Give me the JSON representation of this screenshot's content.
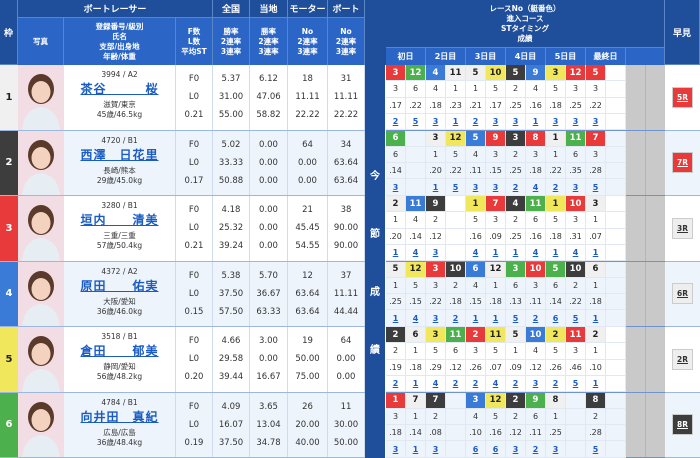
{
  "header": {
    "frame": "枠",
    "racer": "ボートレーサー",
    "photo": "写真",
    "info": "登録番号/級別\n氏名\n支部/出身地\n年齢/体重",
    "fl": "F数\nL数\n平均ST",
    "national": "全国",
    "national_sub": "勝率\n2連率\n3連率",
    "local": "当地",
    "local_sub": "勝率\n2連率\n3連率",
    "motor": "モーター",
    "motor_sub": "No\n2連率\n3連率",
    "boat": "ボート",
    "boat_sub": "No\n2連率\n3連率",
    "series": "レースNo（艇番色）\n進入コース\nSTタイミング\n成績",
    "days": [
      "初日",
      "2日目",
      "3日目",
      "4日目",
      "5日目",
      "最終日",
      ""
    ],
    "hayami": "早見",
    "vertical": [
      "今",
      "節",
      "成",
      "績"
    ]
  },
  "frame_colors": {
    "1": "#f0f0f0",
    "2": "#3d3d3d",
    "3": "#e8393b",
    "4": "#3b7bd8",
    "5": "#f1e75c",
    "6": "#4cb14c"
  },
  "racers": [
    {
      "frame": "1",
      "reg": "3994 / A2",
      "name": "茶谷　　　桜",
      "origin": "滋賀/東京",
      "age_weight": "45歳/46.5kg",
      "fl": [
        "F0",
        "L0",
        "0.21"
      ],
      "national": [
        "5.37",
        "31.00",
        "55.00"
      ],
      "local": [
        "6.12",
        "47.06",
        "58.82"
      ],
      "motor": [
        "18",
        "11.11",
        "22.22"
      ],
      "boat": [
        "31",
        "11.11",
        "22.22"
      ],
      "race": [
        "3",
        "12",
        "4",
        "11",
        "5",
        "10",
        "5",
        "9",
        "3",
        "12",
        "5",
        ""
      ],
      "course": [
        "3",
        "6",
        "4",
        "1",
        "1",
        "5",
        "2",
        "4",
        "5",
        "3",
        "3",
        ""
      ],
      "st": [
        ".17",
        ".22",
        ".18",
        ".23",
        ".21",
        ".17",
        ".25",
        ".16",
        ".18",
        ".25",
        ".22",
        ""
      ],
      "result": [
        "2",
        "5",
        "3",
        "1",
        "2",
        "3",
        "3",
        "1",
        "3",
        "3",
        "3",
        ""
      ],
      "hayami": "5R",
      "hayami_color": "#e8393b"
    },
    {
      "frame": "2",
      "reg": "4720 / B1",
      "name": "西澤　日花里",
      "origin": "長崎/熊本",
      "age_weight": "29歳/45.0kg",
      "fl": [
        "F0",
        "L0",
        "0.17"
      ],
      "national": [
        "5.02",
        "33.33",
        "50.88"
      ],
      "local": [
        "0.00",
        "0.00",
        "0.00"
      ],
      "motor": [
        "64",
        "0.00",
        "0.00"
      ],
      "boat": [
        "34",
        "63.64",
        "63.64"
      ],
      "race": [
        "6",
        "",
        "3",
        "12",
        "5",
        "9",
        "3",
        "8",
        "1",
        "11",
        "7",
        ""
      ],
      "course": [
        "6",
        "",
        "1",
        "5",
        "4",
        "3",
        "2",
        "3",
        "1",
        "6",
        "3",
        ""
      ],
      "st": [
        ".14",
        "",
        ".20",
        ".22",
        ".11",
        ".15",
        ".25",
        ".18",
        ".22",
        ".35",
        ".28",
        ""
      ],
      "result": [
        "3",
        "",
        "1",
        "5",
        "3",
        "3",
        "2",
        "4",
        "2",
        "3",
        "5",
        ""
      ],
      "hayami": "7R",
      "hayami_color": "#e8393b"
    },
    {
      "frame": "3",
      "reg": "3280 / B1",
      "name": "垣内　　清美",
      "origin": "三重/三重",
      "age_weight": "57歳/50.4kg",
      "fl": [
        "F0",
        "L0",
        "0.21"
      ],
      "national": [
        "4.18",
        "25.32",
        "39.24"
      ],
      "local": [
        "0.00",
        "0.00",
        "0.00"
      ],
      "motor": [
        "21",
        "45.45",
        "54.55"
      ],
      "boat": [
        "38",
        "90.00",
        "90.00"
      ],
      "race": [
        "2",
        "11",
        "9",
        "",
        "1",
        "7",
        "4",
        "11",
        "1",
        "10",
        "3",
        ""
      ],
      "course": [
        "1",
        "4",
        "2",
        "",
        "5",
        "3",
        "2",
        "6",
        "5",
        "3",
        "1",
        ""
      ],
      "st": [
        ".20",
        ".14",
        ".12",
        "",
        ".16",
        ".09",
        ".25",
        ".16",
        ".18",
        ".31",
        ".07",
        ""
      ],
      "result": [
        "1",
        "4",
        "3",
        "",
        "4",
        "1",
        "1",
        "4",
        "1",
        "4",
        "1",
        ""
      ],
      "hayami": "3R",
      "hayami_color": "#eeeeee"
    },
    {
      "frame": "4",
      "reg": "4372 / A2",
      "name": "原田　　佑実",
      "origin": "大阪/愛知",
      "age_weight": "36歳/46.0kg",
      "fl": [
        "F0",
        "L0",
        "0.15"
      ],
      "national": [
        "5.38",
        "37.50",
        "57.50"
      ],
      "local": [
        "5.70",
        "36.67",
        "63.33"
      ],
      "motor": [
        "12",
        "63.64",
        "63.64"
      ],
      "boat": [
        "37",
        "11.11",
        "44.44"
      ],
      "race": [
        "5",
        "12",
        "3",
        "10",
        "6",
        "12",
        "3",
        "10",
        "5",
        "10",
        "6",
        ""
      ],
      "course": [
        "1",
        "5",
        "3",
        "2",
        "4",
        "1",
        "6",
        "3",
        "6",
        "2",
        "1",
        ""
      ],
      "st": [
        ".25",
        ".15",
        ".22",
        ".18",
        ".15",
        ".18",
        ".13",
        ".11",
        ".14",
        ".22",
        ".18",
        ""
      ],
      "result": [
        "1",
        "4",
        "3",
        "2",
        "1",
        "1",
        "5",
        "2",
        "6",
        "5",
        "1",
        ""
      ],
      "hayami": "6R",
      "hayami_color": "#eeeeee"
    },
    {
      "frame": "5",
      "reg": "3518 / B1",
      "name": "倉田　　郁美",
      "origin": "静岡/愛知",
      "age_weight": "56歳/48.2kg",
      "fl": [
        "F0",
        "L0",
        "0.20"
      ],
      "national": [
        "4.66",
        "29.58",
        "39.44"
      ],
      "local": [
        "3.00",
        "0.00",
        "16.67"
      ],
      "motor": [
        "19",
        "50.00",
        "75.00"
      ],
      "boat": [
        "64",
        "0.00",
        "0.00"
      ],
      "race": [
        "2",
        "6",
        "3",
        "11",
        "2",
        "11",
        "5",
        "10",
        "2",
        "11",
        "2",
        ""
      ],
      "course": [
        "2",
        "1",
        "5",
        "6",
        "3",
        "5",
        "1",
        "4",
        "5",
        "3",
        "1",
        ""
      ],
      "st": [
        ".19",
        ".18",
        ".29",
        ".12",
        ".26",
        ".07",
        ".09",
        ".12",
        ".26",
        ".46",
        ".10",
        ""
      ],
      "result": [
        "2",
        "1",
        "4",
        "2",
        "2",
        "4",
        "2",
        "3",
        "2",
        "5",
        "1",
        ""
      ],
      "hayami": "2R",
      "hayami_color": "#eeeeee"
    },
    {
      "frame": "6",
      "reg": "4784 / B1",
      "name": "向井田　真紀",
      "origin": "広島/広島",
      "age_weight": "36歳/48.4kg",
      "fl": [
        "F0",
        "L0",
        "0.19"
      ],
      "national": [
        "4.09",
        "16.07",
        "37.50"
      ],
      "local": [
        "3.65",
        "13.04",
        "34.78"
      ],
      "motor": [
        "26",
        "20.00",
        "40.00"
      ],
      "boat": [
        "11",
        "30.00",
        "50.00"
      ],
      "race": [
        "1",
        "7",
        "7",
        "",
        "3",
        "12",
        "2",
        "9",
        "8",
        "",
        "8",
        ""
      ],
      "course": [
        "3",
        "1",
        "2",
        "",
        "4",
        "5",
        "2",
        "6",
        "1",
        "",
        "2",
        ""
      ],
      "st": [
        ".18",
        ".14",
        ".08",
        "",
        ".10",
        ".16",
        ".12",
        ".11",
        ".25",
        "",
        ".28",
        ""
      ],
      "result": [
        "3",
        "1",
        "3",
        "",
        "6",
        "6",
        "3",
        "2",
        "3",
        "",
        "5",
        ""
      ],
      "hayami": "8R",
      "hayami_color": "#3d3d3d"
    }
  ]
}
